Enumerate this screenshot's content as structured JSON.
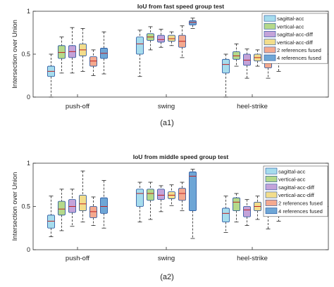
{
  "figure_labels": [
    "(a1)",
    "(a2)"
  ],
  "series_colors": [
    "#a6dced",
    "#b5d98a",
    "#c4a3d9",
    "#f2dd8c",
    "#f4a98f",
    "#6ea6d6"
  ],
  "chart_data": [
    {
      "type": "box",
      "title": "IoU from fast speed group test",
      "ylabel": "Intersection over Union",
      "xlabel": "",
      "ylim": [
        0,
        1
      ],
      "yticks": [
        0,
        0.5,
        1
      ],
      "grid": false,
      "legend_position": "top-right",
      "categories": [
        "push-off",
        "swing",
        "heel-strike"
      ],
      "series": [
        {
          "name": "sagittal-acc",
          "boxes": [
            {
              "min": 0.0,
              "q1": 0.24,
              "median": 0.3,
              "q3": 0.36,
              "max": 0.5
            },
            {
              "min": 0.24,
              "q1": 0.5,
              "median": 0.62,
              "q3": 0.7,
              "max": 0.78
            },
            {
              "min": 0.0,
              "q1": 0.28,
              "median": 0.38,
              "q3": 0.44,
              "max": 0.5
            }
          ]
        },
        {
          "name": "vertical-acc",
          "boxes": [
            {
              "min": 0.28,
              "q1": 0.45,
              "median": 0.52,
              "q3": 0.6,
              "max": 0.7
            },
            {
              "min": 0.55,
              "q1": 0.66,
              "median": 0.7,
              "q3": 0.74,
              "max": 0.82
            },
            {
              "min": 0.36,
              "q1": 0.44,
              "median": 0.48,
              "q3": 0.53,
              "max": 0.62
            }
          ]
        },
        {
          "name": "sagittal-acc-diff",
          "boxes": [
            {
              "min": 0.28,
              "q1": 0.46,
              "median": 0.53,
              "q3": 0.6,
              "max": 0.81
            },
            {
              "min": 0.58,
              "q1": 0.64,
              "median": 0.67,
              "q3": 0.72,
              "max": 0.79
            },
            {
              "min": 0.22,
              "q1": 0.37,
              "median": 0.43,
              "q3": 0.5,
              "max": 0.56
            }
          ]
        },
        {
          "name": "vertical-acc-diff",
          "boxes": [
            {
              "min": 0.3,
              "q1": 0.48,
              "median": 0.55,
              "q3": 0.62,
              "max": 0.8
            },
            {
              "min": 0.6,
              "q1": 0.65,
              "median": 0.68,
              "q3": 0.72,
              "max": 0.76
            },
            {
              "min": 0.36,
              "q1": 0.42,
              "median": 0.46,
              "q3": 0.5,
              "max": 0.55
            }
          ]
        },
        {
          "name": "2 references fused",
          "boxes": [
            {
              "min": 0.25,
              "q1": 0.36,
              "median": 0.42,
              "q3": 0.47,
              "max": 0.55
            },
            {
              "min": 0.46,
              "q1": 0.58,
              "median": 0.65,
              "q3": 0.72,
              "max": 0.83
            },
            {
              "min": 0.22,
              "q1": 0.34,
              "median": 0.43,
              "q3": 0.52,
              "max": 0.59
            }
          ]
        },
        {
          "name": "4 references fused",
          "boxes": [
            {
              "min": 0.27,
              "q1": 0.45,
              "median": 0.51,
              "q3": 0.57,
              "max": 0.76
            },
            {
              "min": 0.8,
              "q1": 0.84,
              "median": 0.87,
              "q3": 0.89,
              "max": 0.92
            },
            {
              "min": 0.3,
              "q1": 0.41,
              "median": 0.47,
              "q3": 0.53,
              "max": 0.62
            }
          ]
        }
      ]
    },
    {
      "type": "box",
      "title": "IoU from middle speed group test",
      "ylabel": "Intersection over Union",
      "xlabel": "",
      "ylim": [
        0,
        1
      ],
      "yticks": [
        0,
        0.5,
        1
      ],
      "grid": false,
      "legend_position": "right",
      "categories": [
        "push-off",
        "swing",
        "heel-strike"
      ],
      "series": [
        {
          "name": "sagittal-acc",
          "boxes": [
            {
              "min": 0.15,
              "q1": 0.25,
              "median": 0.33,
              "q3": 0.4,
              "max": 0.62
            },
            {
              "min": 0.32,
              "q1": 0.5,
              "median": 0.65,
              "q3": 0.7,
              "max": 0.78
            },
            {
              "min": 0.2,
              "q1": 0.32,
              "median": 0.42,
              "q3": 0.48,
              "max": 0.62
            }
          ]
        },
        {
          "name": "vertical-acc",
          "boxes": [
            {
              "min": 0.22,
              "q1": 0.4,
              "median": 0.47,
              "q3": 0.56,
              "max": 0.7
            },
            {
              "min": 0.35,
              "q1": 0.57,
              "median": 0.65,
              "q3": 0.7,
              "max": 0.78
            },
            {
              "min": 0.32,
              "q1": 0.45,
              "median": 0.55,
              "q3": 0.6,
              "max": 0.65
            }
          ]
        },
        {
          "name": "sagittal-acc-diff",
          "boxes": [
            {
              "min": 0.27,
              "q1": 0.43,
              "median": 0.5,
              "q3": 0.58,
              "max": 0.7
            },
            {
              "min": 0.44,
              "q1": 0.58,
              "median": 0.63,
              "q3": 0.7,
              "max": 0.74
            },
            {
              "min": 0.28,
              "q1": 0.38,
              "median": 0.46,
              "q3": 0.5,
              "max": 0.58
            }
          ]
        },
        {
          "name": "vertical-acc-diff",
          "boxes": [
            {
              "min": 0.32,
              "q1": 0.45,
              "median": 0.53,
              "q3": 0.63,
              "max": 0.91
            },
            {
              "min": 0.51,
              "q1": 0.59,
              "median": 0.63,
              "q3": 0.67,
              "max": 0.75
            },
            {
              "min": 0.35,
              "q1": 0.45,
              "median": 0.5,
              "q3": 0.55,
              "max": 0.62
            }
          ]
        },
        {
          "name": "2 references fused",
          "boxes": [
            {
              "min": 0.28,
              "q1": 0.37,
              "median": 0.44,
              "q3": 0.5,
              "max": 0.61
            },
            {
              "min": 0.45,
              "q1": 0.57,
              "median": 0.65,
              "q3": 0.71,
              "max": 0.78
            },
            {
              "min": 0.24,
              "q1": 0.39,
              "median": 0.48,
              "q3": 0.56,
              "max": 0.68
            }
          ]
        },
        {
          "name": "4 references fused",
          "boxes": [
            {
              "min": 0.25,
              "q1": 0.42,
              "median": 0.5,
              "q3": 0.6,
              "max": 0.8
            },
            {
              "min": 0.13,
              "q1": 0.45,
              "median": 0.85,
              "q3": 0.9,
              "max": 0.93
            },
            {
              "min": 0.33,
              "q1": 0.43,
              "median": 0.5,
              "q3": 0.57,
              "max": 0.64
            }
          ]
        }
      ]
    }
  ]
}
